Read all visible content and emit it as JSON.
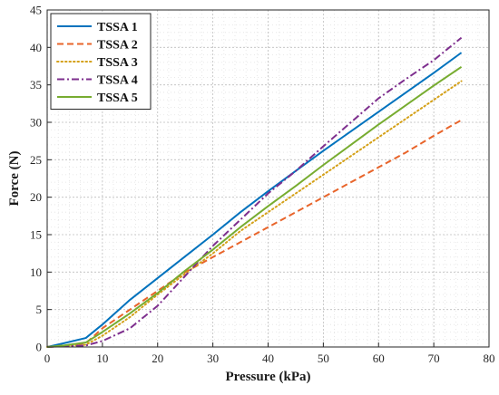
{
  "chart_data": {
    "type": "line",
    "title": "",
    "xlabel": "Pressure (kPa)",
    "ylabel": "Force (N)",
    "xlim": [
      0,
      80
    ],
    "ylim": [
      0,
      45
    ],
    "xticks": [
      0,
      10,
      20,
      30,
      40,
      50,
      60,
      70,
      80
    ],
    "yticks": [
      0,
      5,
      10,
      15,
      20,
      25,
      30,
      35,
      40,
      45
    ],
    "grid": true,
    "legend_position": "top-left",
    "series": [
      {
        "name": "TSSA 1",
        "color": "#0072BD",
        "style": "solid",
        "x": [
          0,
          3,
          7,
          10,
          15,
          20,
          25,
          30,
          35,
          40,
          45,
          50,
          55,
          60,
          65,
          70,
          75
        ],
        "y": [
          0,
          0.5,
          1.2,
          3,
          6.3,
          9.2,
          12.1,
          15.0,
          18.0,
          20.8,
          23.5,
          26.2,
          28.8,
          31.4,
          34.0,
          36.6,
          39.3
        ]
      },
      {
        "name": "TSSA 2",
        "color": "#E8642A",
        "style": "dashed",
        "x": [
          0,
          3,
          7,
          10,
          15,
          20,
          25,
          30,
          35,
          40,
          45,
          50,
          55,
          60,
          65,
          70,
          75
        ],
        "y": [
          0,
          0.2,
          0.5,
          2.5,
          5.0,
          7.5,
          10.0,
          12.0,
          14.0,
          16.0,
          18.0,
          20.0,
          22.0,
          24.0,
          26.0,
          28.2,
          30.3
        ]
      },
      {
        "name": "TSSA 3",
        "color": "#D4A017",
        "style": "dotted",
        "x": [
          0,
          3,
          7,
          10,
          15,
          20,
          25,
          30,
          35,
          40,
          45,
          50,
          55,
          60,
          65,
          70,
          75
        ],
        "y": [
          0,
          0.1,
          0.3,
          1.5,
          4.0,
          7.0,
          9.8,
          12.5,
          15.5,
          18.0,
          20.5,
          23.0,
          25.5,
          28.0,
          30.5,
          33.0,
          35.5
        ]
      },
      {
        "name": "TSSA 4",
        "color": "#7E2F8E",
        "style": "dashdot",
        "x": [
          0,
          3,
          7,
          10,
          15,
          20,
          25,
          30,
          35,
          40,
          45,
          50,
          55,
          60,
          65,
          70,
          75
        ],
        "y": [
          0,
          0.1,
          0.2,
          0.8,
          2.5,
          5.5,
          9.5,
          13.5,
          17.0,
          20.5,
          23.5,
          26.8,
          30.0,
          33.2,
          35.8,
          38.3,
          41.3
        ]
      },
      {
        "name": "TSSA 5",
        "color": "#77AC30",
        "style": "solid",
        "x": [
          0,
          3,
          7,
          10,
          15,
          20,
          25,
          30,
          35,
          40,
          45,
          50,
          55,
          60,
          65,
          70,
          75
        ],
        "y": [
          0,
          0.2,
          0.6,
          2.0,
          4.5,
          7.2,
          10.2,
          13.0,
          16.0,
          18.8,
          21.5,
          24.3,
          27.0,
          29.7,
          32.3,
          34.9,
          37.4
        ]
      }
    ]
  }
}
